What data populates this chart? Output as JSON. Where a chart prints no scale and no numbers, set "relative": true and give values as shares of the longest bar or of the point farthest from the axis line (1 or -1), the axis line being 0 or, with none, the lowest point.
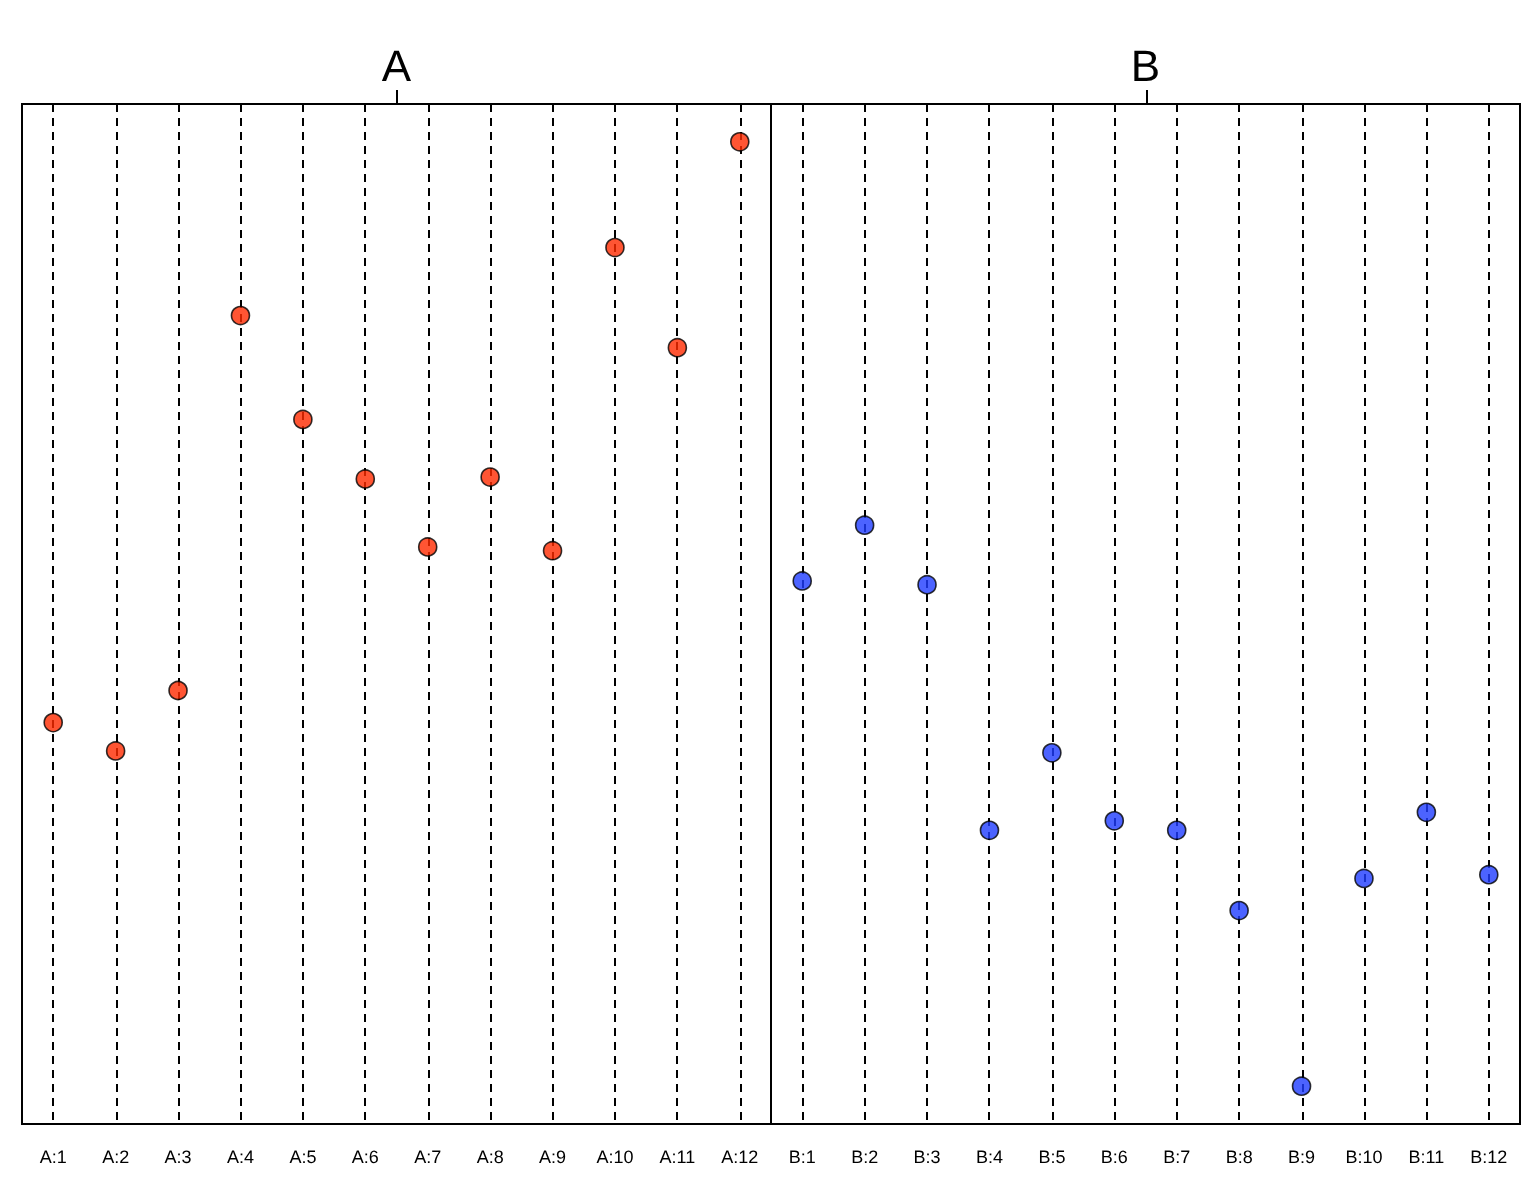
{
  "chart_data": {
    "type": "scatter",
    "relative": true,
    "grid": "x",
    "marker": "circle",
    "annotations": [
      "A",
      "B"
    ],
    "categories": [
      "A:1",
      "A:2",
      "A:3",
      "A:4",
      "A:5",
      "A:6",
      "A:7",
      "A:8",
      "A:9",
      "A:10",
      "A:11",
      "A:12",
      "B:1",
      "B:2",
      "B:3",
      "B:4",
      "B:5",
      "B:6",
      "B:7",
      "B:8",
      "B:9",
      "B:10",
      "B:11",
      "B:12"
    ],
    "series": [
      {
        "color": "#ff2a00",
        "values": [
          0.385,
          0.355,
          0.419,
          0.816,
          0.706,
          0.643,
          0.571,
          0.645,
          0.567,
          0.888,
          0.782,
          1,
          null,
          null,
          null,
          null,
          null,
          null,
          null,
          null,
          null,
          null,
          null,
          null
        ]
      },
      {
        "color": "#1f3cff",
        "values": [
          null,
          null,
          null,
          null,
          null,
          null,
          null,
          null,
          null,
          null,
          null,
          null,
          0.535,
          0.594,
          0.531,
          0.271,
          0.353,
          0.281,
          0.271,
          0.186,
          0,
          0.22,
          0.29,
          0.224
        ]
      }
    ]
  }
}
